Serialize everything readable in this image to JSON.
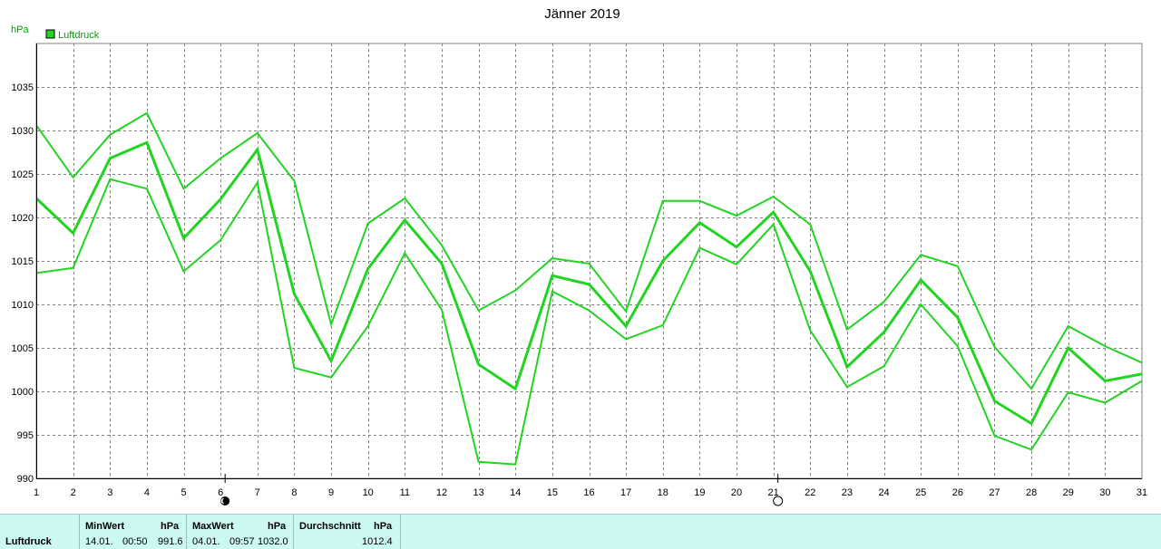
{
  "chart_data": {
    "type": "line",
    "title": "Jänner 2019",
    "ylabel": "hPa",
    "legend": {
      "label": "Luftdruck",
      "position": "top-left"
    },
    "x": [
      1,
      2,
      3,
      4,
      5,
      6,
      7,
      8,
      9,
      10,
      11,
      12,
      13,
      14,
      15,
      16,
      17,
      18,
      19,
      20,
      21,
      22,
      23,
      24,
      25,
      26,
      27,
      28,
      29,
      30,
      31
    ],
    "ylim": [
      990,
      1040
    ],
    "yticks": [
      990,
      995,
      1000,
      1005,
      1010,
      1015,
      1020,
      1025,
      1030,
      1035
    ],
    "grid": true,
    "series": [
      {
        "role": "max",
        "values": [
          1030.6,
          1024.6,
          1029.5,
          1032.0,
          1023.3,
          1026.8,
          1029.7,
          1024.2,
          1007.7,
          1019.3,
          1022.2,
          1016.8,
          1009.3,
          1011.6,
          1015.3,
          1014.7,
          1009.2,
          1021.9,
          1021.9,
          1020.2,
          1022.4,
          1019.2,
          1007.1,
          1010.3,
          1015.7,
          1014.4,
          1005.1,
          1000.3,
          1007.5,
          1005.2,
          1003.3
        ]
      },
      {
        "role": "mean",
        "values": [
          1022.2,
          1018.2,
          1026.8,
          1028.6,
          1017.6,
          1022.1,
          1027.8,
          1011.2,
          1003.5,
          1014.1,
          1019.7,
          1014.7,
          1003.1,
          1000.3,
          1013.3,
          1012.3,
          1007.5,
          1015.0,
          1019.4,
          1016.6,
          1020.6,
          1013.8,
          1002.8,
          1006.8,
          1012.8,
          1008.5,
          998.9,
          996.3,
          1005.0,
          1001.2,
          1002.0
        ]
      },
      {
        "role": "min",
        "values": [
          1013.6,
          1014.2,
          1024.4,
          1023.3,
          1013.8,
          1017.4,
          1024.0,
          1002.7,
          1001.6,
          1007.5,
          1015.9,
          1009.4,
          991.9,
          991.6,
          1011.5,
          1009.3,
          1006.0,
          1007.6,
          1016.5,
          1014.6,
          1019.2,
          1007.0,
          1000.5,
          1002.9,
          1010.0,
          1005.2,
          994.9,
          993.3,
          999.9,
          998.7,
          1001.2
        ]
      }
    ],
    "moon_phases": [
      {
        "day": 6,
        "phase": "new-moon"
      },
      {
        "day": 21,
        "phase": "full-moon"
      }
    ],
    "colors": {
      "line": "#22d422",
      "grid": "#808080",
      "axis": "#000000"
    }
  },
  "stats": {
    "row_label": "Luftdruck",
    "min": {
      "header": "MinWert",
      "unit": "hPa",
      "date": "14.01.",
      "time": "00:50",
      "value": "991.6"
    },
    "max": {
      "header": "MaxWert",
      "unit": "hPa",
      "date": "04.01.",
      "time": "09:57",
      "value": "1032.0"
    },
    "avg": {
      "header": "Durchschnitt",
      "unit": "hPa",
      "value": "1012.4"
    }
  }
}
